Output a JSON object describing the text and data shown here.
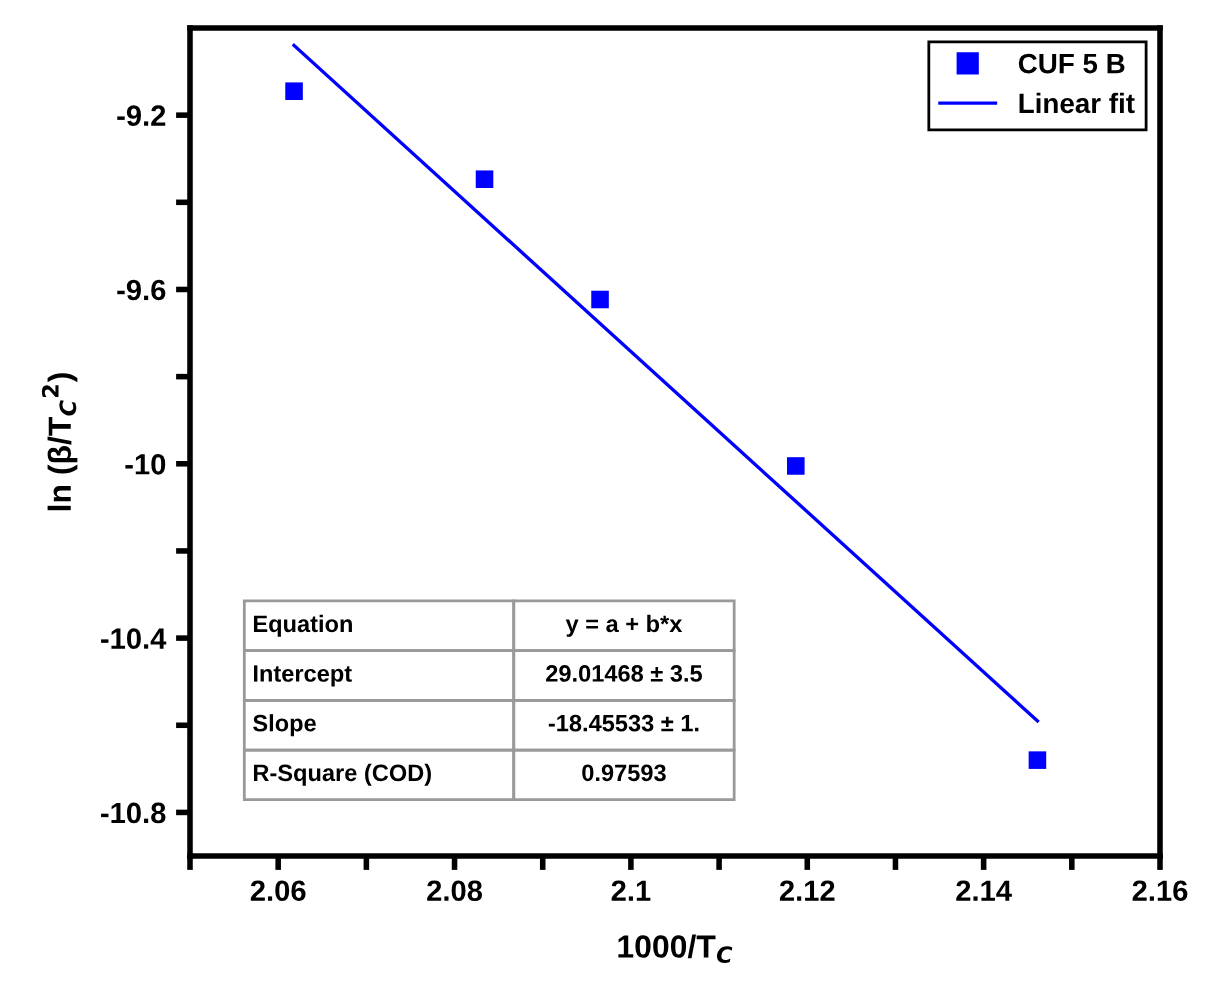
{
  "chart_data": {
    "type": "scatter",
    "xlabel": "1000/T$_{C}$",
    "ylabel": "ln (β/T$_{C}$$^{2}$)",
    "x": [
      2.0618,
      2.0834,
      2.0965,
      2.1187,
      2.1461
    ],
    "series": [
      {
        "name": "CUF 5 B",
        "color": "#0000ff",
        "marker": "square",
        "values": [
          -9.145,
          -9.347,
          -9.623,
          -10.005,
          -10.68
        ]
      },
      {
        "name": "Linear fit",
        "type": "line",
        "color": "#0000ff",
        "marker": "none",
        "line_style": "solid",
        "x": [
          2.0618,
          2.1461
        ],
        "values": [
          -9.04,
          -10.59
        ]
      }
    ],
    "xlim": [
      2.05,
      2.16
    ],
    "xticks": [
      {
        "value": 2.05,
        "label": null
      },
      2.06,
      {
        "value": 2.07,
        "label": null
      },
      2.08,
      {
        "value": 2.09,
        "label": null
      },
      {
        "value": 2.1,
        "label": "2.1"
      },
      {
        "value": 2.11,
        "label": null
      },
      2.12,
      {
        "value": 2.13,
        "label": null
      },
      2.14,
      {
        "value": 2.15,
        "label": null
      },
      2.16
    ],
    "ylim": [
      -10.9,
      -9.0
    ],
    "yticks": [
      -9.2,
      {
        "value": -9.4,
        "label": null
      },
      -9.6,
      {
        "value": -9.8,
        "label": null
      },
      {
        "value": -10,
        "label": "-10"
      },
      {
        "value": -10.2,
        "label": null
      },
      -10.4,
      {
        "value": -10.6,
        "label": null
      },
      -10.8
    ],
    "annotations": [
      "Equation",
      "y = a + b*x",
      "Intercept",
      "29.01468 ± 3.5",
      "Slope",
      "-18.45533 ± 1.",
      "R-Square (COD)",
      "0.97593"
    ],
    "legend": "top right",
    "grid": false
  }
}
